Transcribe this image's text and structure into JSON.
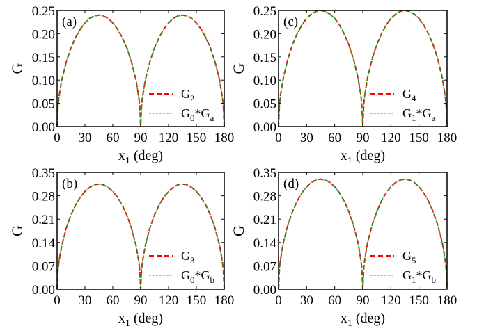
{
  "colors": {
    "series_red": "#ff0000",
    "series_green": "#2a9a2a",
    "legend_green": "#7cc47c"
  },
  "chart_data": [
    {
      "type": "line",
      "panel_label": "(a)",
      "xlabel": "x",
      "xlabel_sub": "1",
      "xlabel_unit": " (deg)",
      "ylabel": "G",
      "xlim": [
        0,
        180
      ],
      "ylim": [
        0,
        0.25
      ],
      "xticks": [
        "0",
        "30",
        "60",
        "90",
        "120",
        "150",
        "180"
      ],
      "yticks": [
        "0.00",
        "0.05",
        "0.10",
        "0.15",
        "0.20",
        "0.25"
      ],
      "legend_position": "lower-right",
      "x": [
        0,
        1,
        2,
        5,
        10,
        15,
        20,
        25,
        30,
        35,
        40,
        45,
        50,
        55,
        60,
        65,
        70,
        75,
        80,
        85,
        88,
        89,
        90,
        91,
        92,
        95,
        100,
        105,
        110,
        115,
        120,
        125,
        130,
        135,
        140,
        145,
        150,
        155,
        160,
        165,
        170,
        175,
        178,
        179,
        180
      ],
      "series": [
        {
          "name": "G2",
          "legend_main": "G",
          "legend_sub": "2",
          "legend_rest": "",
          "legend_sub2": "",
          "style": "dashed-red",
          "values": [
            0,
            0.045,
            0.063,
            0.1,
            0.14,
            0.17,
            0.192,
            0.21,
            0.223,
            0.233,
            0.238,
            0.24,
            0.238,
            0.233,
            0.223,
            0.21,
            0.192,
            0.17,
            0.14,
            0.1,
            0.063,
            0.045,
            0,
            0.045,
            0.063,
            0.1,
            0.14,
            0.17,
            0.192,
            0.21,
            0.223,
            0.233,
            0.238,
            0.24,
            0.238,
            0.233,
            0.223,
            0.21,
            0.192,
            0.17,
            0.14,
            0.1,
            0.063,
            0.045,
            0
          ]
        },
        {
          "name": "G0*Ga",
          "legend_main": "G",
          "legend_sub": "0",
          "legend_rest": "*G",
          "legend_sub2": "a",
          "style": "dotted-green",
          "values": [
            0,
            0.045,
            0.063,
            0.1,
            0.14,
            0.17,
            0.192,
            0.21,
            0.223,
            0.233,
            0.238,
            0.24,
            0.238,
            0.233,
            0.223,
            0.21,
            0.192,
            0.17,
            0.14,
            0.1,
            0.063,
            0.045,
            0,
            0.045,
            0.063,
            0.1,
            0.14,
            0.17,
            0.192,
            0.21,
            0.223,
            0.233,
            0.238,
            0.24,
            0.238,
            0.233,
            0.223,
            0.21,
            0.192,
            0.17,
            0.14,
            0.1,
            0.063,
            0.045,
            0
          ]
        }
      ]
    },
    {
      "type": "line",
      "panel_label": "(b)",
      "xlabel": "x",
      "xlabel_sub": "1",
      "xlabel_unit": " (deg)",
      "ylabel": "G",
      "xlim": [
        0,
        180
      ],
      "ylim": [
        0,
        0.35
      ],
      "xticks": [
        "0",
        "30",
        "60",
        "90",
        "120",
        "150",
        "180"
      ],
      "yticks": [
        "0.00",
        "0.07",
        "0.14",
        "0.21",
        "0.28",
        "0.35"
      ],
      "legend_position": "lower-right",
      "x": [
        0,
        1,
        2,
        5,
        10,
        15,
        20,
        25,
        30,
        35,
        40,
        45,
        50,
        55,
        60,
        65,
        70,
        75,
        80,
        85,
        88,
        89,
        90,
        91,
        92,
        95,
        100,
        105,
        110,
        115,
        120,
        125,
        130,
        135,
        140,
        145,
        150,
        155,
        160,
        165,
        170,
        175,
        178,
        179,
        180
      ],
      "series": [
        {
          "name": "G3",
          "legend_main": "G",
          "legend_sub": "3",
          "legend_rest": "",
          "legend_sub2": "",
          "style": "dashed-red",
          "values": [
            0,
            0.059,
            0.083,
            0.131,
            0.184,
            0.223,
            0.253,
            0.276,
            0.293,
            0.305,
            0.313,
            0.315,
            0.313,
            0.305,
            0.293,
            0.276,
            0.253,
            0.223,
            0.184,
            0.131,
            0.083,
            0.059,
            0,
            0.059,
            0.083,
            0.131,
            0.184,
            0.223,
            0.253,
            0.276,
            0.293,
            0.305,
            0.313,
            0.315,
            0.313,
            0.305,
            0.293,
            0.276,
            0.253,
            0.223,
            0.184,
            0.131,
            0.083,
            0.059,
            0
          ]
        },
        {
          "name": "G0*Gb",
          "legend_main": "G",
          "legend_sub": "0",
          "legend_rest": "*G",
          "legend_sub2": "b",
          "style": "dotted-green",
          "values": [
            0,
            0.059,
            0.083,
            0.131,
            0.184,
            0.223,
            0.253,
            0.276,
            0.293,
            0.305,
            0.313,
            0.315,
            0.313,
            0.305,
            0.293,
            0.276,
            0.253,
            0.223,
            0.184,
            0.131,
            0.083,
            0.059,
            0,
            0.059,
            0.083,
            0.131,
            0.184,
            0.223,
            0.253,
            0.276,
            0.293,
            0.305,
            0.313,
            0.315,
            0.313,
            0.305,
            0.293,
            0.276,
            0.253,
            0.223,
            0.184,
            0.131,
            0.083,
            0.059,
            0
          ]
        }
      ]
    },
    {
      "type": "line",
      "panel_label": "(c)",
      "xlabel": "x",
      "xlabel_sub": "1",
      "xlabel_unit": " (deg)",
      "ylabel": "G",
      "xlim": [
        0,
        180
      ],
      "ylim": [
        0,
        0.25
      ],
      "xticks": [
        "0",
        "30",
        "60",
        "90",
        "120",
        "150",
        "180"
      ],
      "yticks": [
        "0.00",
        "0.05",
        "0.10",
        "0.15",
        "0.20",
        "0.25"
      ],
      "legend_position": "lower-right",
      "x": [
        0,
        1,
        2,
        5,
        10,
        15,
        20,
        25,
        30,
        35,
        40,
        45,
        50,
        55,
        60,
        65,
        70,
        75,
        80,
        85,
        88,
        89,
        90,
        91,
        92,
        95,
        100,
        105,
        110,
        115,
        120,
        125,
        130,
        135,
        140,
        145,
        150,
        155,
        160,
        165,
        170,
        175,
        178,
        179,
        180
      ],
      "series": [
        {
          "name": "G4",
          "legend_main": "G",
          "legend_sub": "4",
          "legend_rest": "",
          "legend_sub2": "",
          "style": "dashed-red",
          "values": [
            0,
            0.047,
            0.066,
            0.104,
            0.146,
            0.177,
            0.2,
            0.219,
            0.233,
            0.242,
            0.248,
            0.25,
            0.248,
            0.242,
            0.233,
            0.219,
            0.2,
            0.177,
            0.146,
            0.104,
            0.066,
            0.047,
            0,
            0.047,
            0.066,
            0.104,
            0.146,
            0.177,
            0.2,
            0.219,
            0.233,
            0.242,
            0.248,
            0.25,
            0.248,
            0.242,
            0.233,
            0.219,
            0.2,
            0.177,
            0.146,
            0.104,
            0.066,
            0.047,
            0
          ]
        },
        {
          "name": "G1*Ga",
          "legend_main": "G",
          "legend_sub": "1",
          "legend_rest": "*G",
          "legend_sub2": "a",
          "style": "dotted-green",
          "values": [
            0,
            0.047,
            0.066,
            0.104,
            0.146,
            0.177,
            0.2,
            0.219,
            0.233,
            0.242,
            0.248,
            0.25,
            0.248,
            0.242,
            0.233,
            0.219,
            0.2,
            0.177,
            0.146,
            0.104,
            0.066,
            0.047,
            0,
            0.047,
            0.066,
            0.104,
            0.146,
            0.177,
            0.2,
            0.219,
            0.233,
            0.242,
            0.248,
            0.25,
            0.248,
            0.242,
            0.233,
            0.219,
            0.2,
            0.177,
            0.146,
            0.104,
            0.066,
            0.047,
            0
          ]
        }
      ]
    },
    {
      "type": "line",
      "panel_label": "(d)",
      "xlabel": "x",
      "xlabel_sub": "1",
      "xlabel_unit": " (deg)",
      "ylabel": "G",
      "xlim": [
        0,
        180
      ],
      "ylim": [
        0,
        0.35
      ],
      "xticks": [
        "0",
        "30",
        "60",
        "90",
        "120",
        "150",
        "180"
      ],
      "yticks": [
        "0.00",
        "0.07",
        "0.14",
        "0.21",
        "0.28",
        "0.35"
      ],
      "legend_position": "lower-right",
      "x": [
        0,
        1,
        2,
        5,
        10,
        15,
        20,
        25,
        30,
        35,
        40,
        45,
        50,
        55,
        60,
        65,
        70,
        75,
        80,
        85,
        88,
        89,
        90,
        91,
        92,
        95,
        100,
        105,
        110,
        115,
        120,
        125,
        130,
        135,
        140,
        145,
        150,
        155,
        160,
        165,
        170,
        175,
        178,
        179,
        180
      ],
      "series": [
        {
          "name": "G5",
          "legend_main": "G",
          "legend_sub": "5",
          "legend_rest": "",
          "legend_sub2": "",
          "style": "dashed-red",
          "values": [
            0,
            0.062,
            0.087,
            0.138,
            0.193,
            0.233,
            0.265,
            0.289,
            0.307,
            0.32,
            0.327,
            0.33,
            0.327,
            0.32,
            0.307,
            0.289,
            0.265,
            0.233,
            0.193,
            0.138,
            0.087,
            0.062,
            0,
            0.062,
            0.087,
            0.138,
            0.193,
            0.233,
            0.265,
            0.289,
            0.307,
            0.32,
            0.327,
            0.33,
            0.327,
            0.32,
            0.307,
            0.289,
            0.265,
            0.233,
            0.193,
            0.138,
            0.087,
            0.062,
            0
          ]
        },
        {
          "name": "G1*Gb",
          "legend_main": "G",
          "legend_sub": "1",
          "legend_rest": "*G",
          "legend_sub2": "b",
          "style": "dotted-green",
          "values": [
            0,
            0.062,
            0.087,
            0.138,
            0.193,
            0.233,
            0.265,
            0.289,
            0.307,
            0.32,
            0.327,
            0.33,
            0.327,
            0.32,
            0.307,
            0.289,
            0.265,
            0.233,
            0.193,
            0.138,
            0.087,
            0.062,
            0,
            0.062,
            0.087,
            0.138,
            0.193,
            0.233,
            0.265,
            0.289,
            0.307,
            0.32,
            0.327,
            0.33,
            0.327,
            0.32,
            0.307,
            0.289,
            0.265,
            0.233,
            0.193,
            0.138,
            0.087,
            0.062,
            0
          ]
        }
      ]
    }
  ]
}
